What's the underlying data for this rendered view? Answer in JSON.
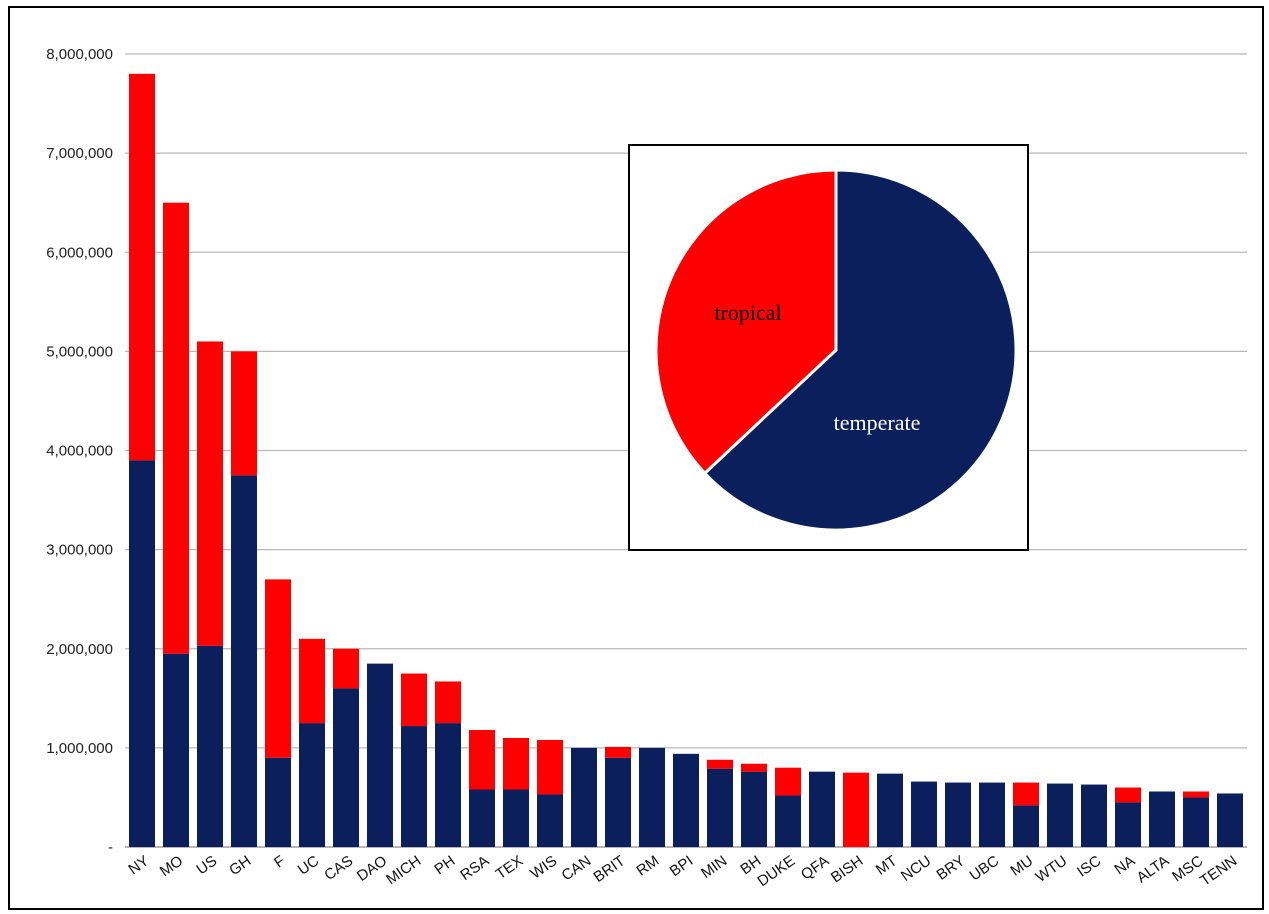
{
  "chart_data": [
    {
      "type": "bar",
      "stacked": true,
      "categories": [
        "NY",
        "MO",
        "US",
        "GH",
        "F",
        "UC",
        "CAS",
        "DAO",
        "MICH",
        "PH",
        "RSA",
        "TEX",
        "WIS",
        "CAN",
        "BRIT",
        "RM",
        "BPI",
        "MIN",
        "BH",
        "DUKE",
        "QFA",
        "BISH",
        "MT",
        "NCU",
        "BRY",
        "UBC",
        "MU",
        "WTU",
        "ISC",
        "NA",
        "ALTA",
        "MSC",
        "TENN"
      ],
      "series": [
        {
          "color": "#0b1f5c",
          "values": [
            3900000,
            1950000,
            2030000,
            3750000,
            900000,
            1250000,
            1600000,
            1850000,
            1220000,
            1250000,
            580000,
            580000,
            530000,
            1000000,
            900000,
            1000000,
            940000,
            790000,
            760000,
            520000,
            760000,
            0,
            740000,
            660000,
            650000,
            650000,
            420000,
            640000,
            630000,
            450000,
            560000,
            500000,
            540000
          ]
        },
        {
          "color": "#ff0000",
          "values": [
            3900000,
            4550000,
            3070000,
            1250000,
            1800000,
            850000,
            400000,
            0,
            530000,
            420000,
            600000,
            520000,
            550000,
            0,
            110000,
            0,
            0,
            90000,
            80000,
            280000,
            0,
            750000,
            0,
            0,
            0,
            0,
            230000,
            0,
            0,
            150000,
            0,
            60000,
            0
          ]
        }
      ],
      "ylim": [
        0,
        8000000
      ],
      "yticks": [
        0,
        1000000,
        2000000,
        3000000,
        4000000,
        5000000,
        6000000,
        7000000,
        8000000
      ],
      "ytick_labels": [
        "-",
        "1,000,000",
        "2,000,000",
        "3,000,000",
        "4,000,000",
        "5,000,000",
        "6,000,000",
        "7,000,000",
        "8,000,000"
      ],
      "grid": true
    },
    {
      "type": "pie",
      "labels": [
        "temperate",
        "tropical"
      ],
      "values": [
        63,
        37
      ],
      "colors": [
        "#0b1f5c",
        "#ff0000"
      ],
      "label_colors": [
        "#ffffff",
        "#000000"
      ]
    }
  ]
}
